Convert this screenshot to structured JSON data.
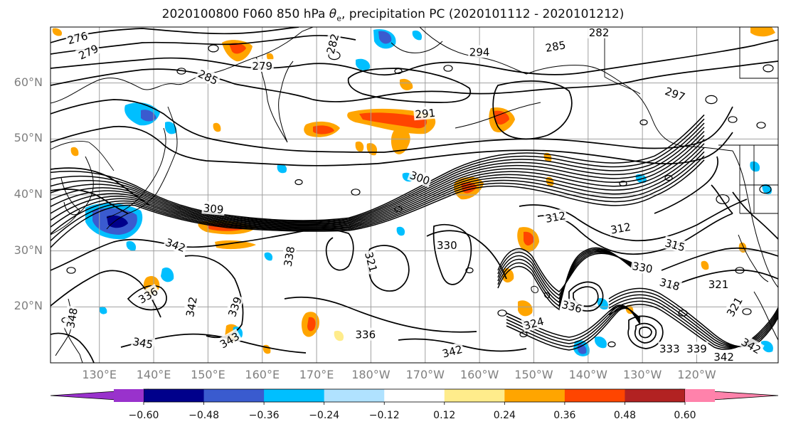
{
  "title": {
    "prefix": "2020100800 F060 850 hPa ",
    "theta": "θ",
    "theta_sub": "e",
    "suffix": ", precipitation PC (2020101112 - 2020101212)"
  },
  "map": {
    "projection": "plate-carree",
    "lon_range": [
      121,
      255
    ],
    "lat_range": [
      10,
      70
    ],
    "lat_labels": [
      {
        "lat": 60,
        "text": "60°N"
      },
      {
        "lat": 50,
        "text": "50°N"
      },
      {
        "lat": 40,
        "text": "40°N"
      },
      {
        "lat": 30,
        "text": "30°N"
      },
      {
        "lat": 20,
        "text": "20°N"
      }
    ],
    "lon_labels": [
      {
        "lon": 130,
        "text": "130°E"
      },
      {
        "lon": 140,
        "text": "140°E"
      },
      {
        "lon": 150,
        "text": "150°E"
      },
      {
        "lon": 160,
        "text": "160°E"
      },
      {
        "lon": 170,
        "text": "170°E"
      },
      {
        "lon": 180,
        "text": "180°W"
      },
      {
        "lon": 190,
        "text": "170°W"
      },
      {
        "lon": 200,
        "text": "160°W"
      },
      {
        "lon": 210,
        "text": "150°W"
      },
      {
        "lon": 220,
        "text": "140°W"
      },
      {
        "lon": 230,
        "text": "130°W"
      },
      {
        "lon": 240,
        "text": "120°W"
      }
    ],
    "grid": true,
    "grid_color": "#a0a0a0",
    "contour_labels": [
      {
        "text": "276",
        "lon": 126,
        "lat": 68,
        "angle": -15
      },
      {
        "text": "279",
        "lon": 128,
        "lat": 65.5,
        "angle": -25
      },
      {
        "text": "285",
        "lon": 150,
        "lat": 61,
        "angle": 25
      },
      {
        "text": "279",
        "lon": 160,
        "lat": 63,
        "angle": 0
      },
      {
        "text": "282",
        "lon": 173,
        "lat": 67,
        "angle": -75
      },
      {
        "text": "294",
        "lon": 200,
        "lat": 65.5,
        "angle": 0
      },
      {
        "text": "282",
        "lon": 222,
        "lat": 69,
        "angle": 0
      },
      {
        "text": "285",
        "lon": 214,
        "lat": 66.5,
        "angle": -10
      },
      {
        "text": "291",
        "lon": 190,
        "lat": 54.5,
        "angle": -5
      },
      {
        "text": "297",
        "lon": 236,
        "lat": 58,
        "angle": 20
      },
      {
        "text": "300",
        "lon": 189,
        "lat": 43,
        "angle": 20
      },
      {
        "text": "309",
        "lon": 151,
        "lat": 37.5,
        "angle": 5
      },
      {
        "text": "312",
        "lon": 214,
        "lat": 36,
        "angle": -10
      },
      {
        "text": "312",
        "lon": 226,
        "lat": 34,
        "angle": -10
      },
      {
        "text": "315",
        "lon": 236,
        "lat": 31,
        "angle": 15
      },
      {
        "text": "342",
        "lon": 144,
        "lat": 31,
        "angle": 20
      },
      {
        "text": "330",
        "lon": 194,
        "lat": 31,
        "angle": 0
      },
      {
        "text": "321",
        "lon": 180,
        "lat": 28,
        "angle": 75
      },
      {
        "text": "338",
        "lon": 165,
        "lat": 29,
        "angle": -80
      },
      {
        "text": "318",
        "lon": 235,
        "lat": 24,
        "angle": 15
      },
      {
        "text": "321",
        "lon": 244,
        "lat": 24,
        "angle": 0
      },
      {
        "text": "336",
        "lon": 139,
        "lat": 22,
        "angle": -30
      },
      {
        "text": "342",
        "lon": 147,
        "lat": 20,
        "angle": -80
      },
      {
        "text": "339",
        "lon": 155,
        "lat": 20,
        "angle": -70
      },
      {
        "text": "348",
        "lon": 125,
        "lat": 18,
        "angle": -80
      },
      {
        "text": "345",
        "lon": 138,
        "lat": 13.5,
        "angle": 10
      },
      {
        "text": "343",
        "lon": 154,
        "lat": 14,
        "angle": -30
      },
      {
        "text": "336",
        "lon": 179,
        "lat": 15,
        "angle": 0
      },
      {
        "text": "342",
        "lon": 195,
        "lat": 12,
        "angle": -15
      },
      {
        "text": "324",
        "lon": 210,
        "lat": 17,
        "angle": -15
      },
      {
        "text": "336",
        "lon": 217,
        "lat": 20,
        "angle": 15
      },
      {
        "text": "330",
        "lon": 230,
        "lat": 27,
        "angle": 10
      },
      {
        "text": "321",
        "lon": 247,
        "lat": 20,
        "angle": -60
      },
      {
        "text": "333",
        "lon": 235,
        "lat": 12.5,
        "angle": 0
      },
      {
        "text": "339",
        "lon": 240,
        "lat": 12.5,
        "angle": 0
      },
      {
        "text": "342",
        "lon": 245,
        "lat": 11,
        "angle": 0
      },
      {
        "text": "342",
        "lon": 250,
        "lat": 13,
        "angle": 30
      }
    ]
  },
  "colorbar": {
    "colors": [
      "#9932cc",
      "#00008b",
      "#3a5bcf",
      "#00bfff",
      "#b0e2ff",
      "#ffffff",
      "#ffec8b",
      "#ffa500",
      "#ff4500",
      "#b22222",
      "#ff82ab"
    ],
    "tick_labels": [
      "−0.60",
      "−0.48",
      "−0.36",
      "−0.24",
      "−0.12",
      "0.12",
      "0.24",
      "0.36",
      "0.48",
      "0.60"
    ],
    "levels": [
      -0.6,
      -0.48,
      -0.36,
      -0.24,
      -0.12,
      0.12,
      0.24,
      0.36,
      0.48,
      0.6
    ]
  }
}
